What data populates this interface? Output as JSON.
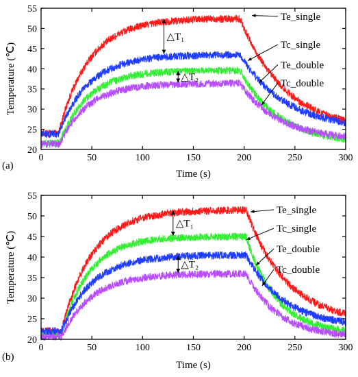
{
  "chart_data": [
    {
      "type": "line",
      "panel_label": "(a)",
      "xlabel": "Time (s)",
      "ylabel": "Temperature (℃)",
      "xlim": [
        0,
        300
      ],
      "ylim": [
        20,
        55
      ],
      "xticks": [
        0,
        50,
        100,
        150,
        200,
        250,
        300
      ],
      "yticks": [
        20,
        25,
        30,
        35,
        40,
        45,
        50,
        55
      ],
      "grid": false,
      "series": [
        {
          "name": "Te_single",
          "color": "#ff1a1a",
          "base": 24.0,
          "plateau": 52.5,
          "end": 24.3,
          "rise_start": 17,
          "tau_rise": 30,
          "fall_start": 196,
          "tau_fall": 45
        },
        {
          "name": "Tc_single",
          "color": "#1f3dff",
          "base": 23.8,
          "plateau": 43.5,
          "end": 24.8,
          "rise_start": 17,
          "tau_rise": 30,
          "fall_start": 196,
          "tau_fall": 45
        },
        {
          "name": "Te_double",
          "color": "#33ee33",
          "base": 21.6,
          "plateau": 39.6,
          "end": 21.4,
          "rise_start": 18,
          "tau_rise": 28,
          "fall_start": 196,
          "tau_fall": 38
        },
        {
          "name": "Tc_double",
          "color": "#b84dff",
          "base": 21.3,
          "plateau": 36.4,
          "end": 22.3,
          "rise_start": 18,
          "tau_rise": 28,
          "fall_start": 196,
          "tau_fall": 38
        }
      ],
      "annotations": [
        {
          "text": "△T₁",
          "x": 121,
          "y_from": 52.5,
          "y_to": 43.5
        },
        {
          "text": "△T₂",
          "x": 135,
          "y_from": 39.6,
          "y_to": 36.4
        }
      ]
    },
    {
      "type": "line",
      "panel_label": "(b)",
      "xlabel": "Time (s)",
      "ylabel": "Temperature (℃)",
      "xlim": [
        0,
        300
      ],
      "ylim": [
        20,
        55
      ],
      "xticks": [
        0,
        50,
        100,
        150,
        200,
        250,
        300
      ],
      "yticks": [
        20,
        25,
        30,
        35,
        40,
        45,
        50,
        55
      ],
      "grid": false,
      "series": [
        {
          "name": "Te_single",
          "color": "#ff1a1a",
          "base": 22.0,
          "plateau": 51.5,
          "end": 23.8,
          "rise_start": 20,
          "tau_rise": 30,
          "fall_start": 202,
          "tau_fall": 40
        },
        {
          "name": "Tc_single",
          "color": "#33ee33",
          "base": 21.2,
          "plateau": 45.0,
          "end": 21.2,
          "rise_start": 20,
          "tau_rise": 27,
          "fall_start": 202,
          "tau_fall": 30
        },
        {
          "name": "Te_double",
          "color": "#1f3dff",
          "base": 22.0,
          "plateau": 40.5,
          "end": 22.8,
          "rise_start": 20,
          "tau_rise": 30,
          "fall_start": 202,
          "tau_fall": 38
        },
        {
          "name": "Tc_double",
          "color": "#b84dff",
          "base": 20.6,
          "plateau": 36.0,
          "end": 20.4,
          "rise_start": 20,
          "tau_rise": 30,
          "fall_start": 202,
          "tau_fall": 32
        }
      ],
      "annotations": [
        {
          "text": "△T₁",
          "x": 130,
          "y_from": 51.5,
          "y_to": 45.0
        },
        {
          "text": "△T₂",
          "x": 135,
          "y_from": 40.5,
          "y_to": 36.0
        }
      ]
    }
  ]
}
